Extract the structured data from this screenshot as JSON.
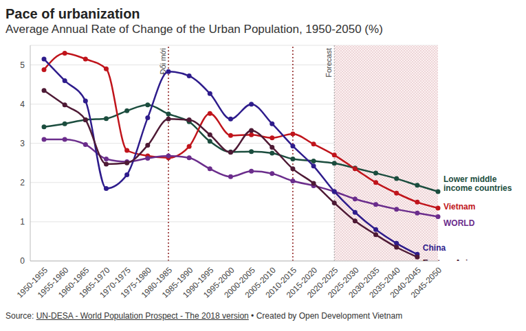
{
  "chart_data": {
    "type": "line",
    "title": "Pace of urbanization",
    "subtitle": "Average Annual Rate of Change of the Urban Population, 1950-2050 (%)",
    "categories": [
      "1950-1955",
      "1955-1960",
      "1960-1965",
      "1965-1970",
      "1970-1975",
      "1975-1980",
      "1980-1985",
      "1985-1990",
      "1990-1995",
      "1995-2000",
      "2000-2005",
      "2005-2010",
      "2010-2015",
      "2015-2020",
      "2020-2025",
      "2025-2030",
      "2030-2035",
      "2035-2040",
      "2040-2045",
      "2045-2050"
    ],
    "series": [
      {
        "name": "Lower middle income countries",
        "color": "#1b4d3e",
        "values": [
          3.42,
          3.5,
          3.6,
          3.63,
          3.83,
          3.98,
          3.75,
          3.55,
          3.05,
          2.78,
          2.79,
          2.75,
          2.6,
          2.55,
          2.49,
          2.37,
          2.24,
          2.1,
          1.93,
          1.77
        ]
      },
      {
        "name": "Vietnam",
        "color": "#c0141b",
        "values": [
          4.88,
          5.3,
          5.15,
          4.9,
          2.82,
          2.68,
          2.63,
          2.92,
          3.76,
          3.2,
          3.22,
          3.14,
          3.24,
          2.98,
          2.7,
          2.35,
          2.0,
          1.73,
          1.5,
          1.35
        ]
      },
      {
        "name": "WORLD",
        "color": "#6b2d8c",
        "values": [
          3.1,
          3.1,
          2.97,
          2.6,
          2.53,
          2.62,
          2.68,
          2.63,
          2.35,
          2.15,
          2.29,
          2.23,
          2.04,
          1.92,
          1.77,
          1.58,
          1.44,
          1.32,
          1.22,
          1.13
        ]
      },
      {
        "name": "China",
        "color": "#2e1c8c",
        "values": [
          5.15,
          4.6,
          4.08,
          1.85,
          2.2,
          3.65,
          4.83,
          4.72,
          4.27,
          3.62,
          4.0,
          3.5,
          2.93,
          2.42,
          1.77,
          1.24,
          0.8,
          0.45,
          0.17,
          null
        ]
      },
      {
        "name": "Eastern Asia",
        "color": "#4e1a35",
        "values": [
          4.35,
          3.98,
          3.6,
          2.47,
          2.5,
          2.95,
          3.62,
          3.6,
          3.22,
          2.77,
          3.33,
          2.9,
          2.35,
          1.98,
          1.48,
          1.02,
          0.67,
          0.35,
          0.1,
          null
        ]
      }
    ],
    "ylim": [
      0,
      5.5
    ],
    "yticks": [
      0,
      1,
      2,
      3,
      4,
      5
    ],
    "grid": true,
    "marker": "circle",
    "line_style": "solid",
    "annotations": [
      {
        "type": "vline",
        "x": "1980-1985",
        "text": "Đổi mới"
      },
      {
        "type": "vline",
        "x": "2010-2015"
      },
      {
        "type": "region",
        "x_start": "2020-2025",
        "x_end": "2045-2050",
        "text": "Forecast"
      }
    ],
    "source_label": "Source:",
    "source": "UN-DESA - World Population Prospect - The 2018 version",
    "credit": "• Created by Open Development Vietnam"
  }
}
